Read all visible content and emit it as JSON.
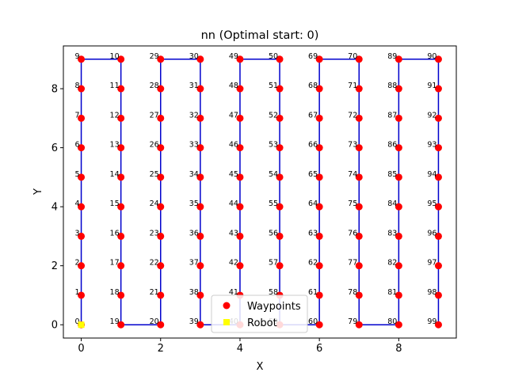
{
  "chart_data": {
    "type": "scatter",
    "title": "nn (Optimal start: 0)",
    "xlabel": "X",
    "ylabel": "Y",
    "xlim": [
      -0.45,
      9.45
    ],
    "ylim": [
      -0.45,
      9.45
    ],
    "xticks": [
      "0",
      "2",
      "4",
      "6",
      "8"
    ],
    "xtick_values": [
      0,
      2,
      4,
      6,
      8
    ],
    "yticks": [
      "0",
      "2",
      "4",
      "6",
      "8"
    ],
    "ytick_values": [
      0,
      2,
      4,
      6,
      8
    ],
    "grid": false,
    "legend": {
      "placement": "lower-center",
      "entries": [
        {
          "label": "Waypoints",
          "marker": "circle",
          "color": "#ff0000"
        },
        {
          "label": "Robot",
          "marker": "square",
          "color": "#ffff00"
        }
      ]
    },
    "waypoint_color": "#ff0000",
    "path_color": "#0000cc",
    "robot_color": "#ffff00",
    "robot_position": [
      0,
      0
    ],
    "waypoints": [
      {
        "id": "0",
        "x": 0,
        "y": 0
      },
      {
        "id": "1",
        "x": 0,
        "y": 1
      },
      {
        "id": "2",
        "x": 0,
        "y": 2
      },
      {
        "id": "3",
        "x": 0,
        "y": 3
      },
      {
        "id": "4",
        "x": 0,
        "y": 4
      },
      {
        "id": "5",
        "x": 0,
        "y": 5
      },
      {
        "id": "6",
        "x": 0,
        "y": 6
      },
      {
        "id": "7",
        "x": 0,
        "y": 7
      },
      {
        "id": "8",
        "x": 0,
        "y": 8
      },
      {
        "id": "9",
        "x": 0,
        "y": 9
      },
      {
        "id": "10",
        "x": 1,
        "y": 9
      },
      {
        "id": "11",
        "x": 1,
        "y": 8
      },
      {
        "id": "12",
        "x": 1,
        "y": 7
      },
      {
        "id": "13",
        "x": 1,
        "y": 6
      },
      {
        "id": "14",
        "x": 1,
        "y": 5
      },
      {
        "id": "15",
        "x": 1,
        "y": 4
      },
      {
        "id": "16",
        "x": 1,
        "y": 3
      },
      {
        "id": "17",
        "x": 1,
        "y": 2
      },
      {
        "id": "18",
        "x": 1,
        "y": 1
      },
      {
        "id": "19",
        "x": 1,
        "y": 0
      },
      {
        "id": "20",
        "x": 2,
        "y": 0
      },
      {
        "id": "21",
        "x": 2,
        "y": 1
      },
      {
        "id": "22",
        "x": 2,
        "y": 2
      },
      {
        "id": "23",
        "x": 2,
        "y": 3
      },
      {
        "id": "24",
        "x": 2,
        "y": 4
      },
      {
        "id": "25",
        "x": 2,
        "y": 5
      },
      {
        "id": "26",
        "x": 2,
        "y": 6
      },
      {
        "id": "27",
        "x": 2,
        "y": 7
      },
      {
        "id": "28",
        "x": 2,
        "y": 8
      },
      {
        "id": "29",
        "x": 2,
        "y": 9
      },
      {
        "id": "30",
        "x": 3,
        "y": 9
      },
      {
        "id": "31",
        "x": 3,
        "y": 8
      },
      {
        "id": "32",
        "x": 3,
        "y": 7
      },
      {
        "id": "33",
        "x": 3,
        "y": 6
      },
      {
        "id": "34",
        "x": 3,
        "y": 5
      },
      {
        "id": "35",
        "x": 3,
        "y": 4
      },
      {
        "id": "36",
        "x": 3,
        "y": 3
      },
      {
        "id": "37",
        "x": 3,
        "y": 2
      },
      {
        "id": "38",
        "x": 3,
        "y": 1
      },
      {
        "id": "39",
        "x": 3,
        "y": 0
      },
      {
        "id": "40",
        "x": 4,
        "y": 0
      },
      {
        "id": "41",
        "x": 4,
        "y": 1
      },
      {
        "id": "42",
        "x": 4,
        "y": 2
      },
      {
        "id": "43",
        "x": 4,
        "y": 3
      },
      {
        "id": "44",
        "x": 4,
        "y": 4
      },
      {
        "id": "45",
        "x": 4,
        "y": 5
      },
      {
        "id": "46",
        "x": 4,
        "y": 6
      },
      {
        "id": "47",
        "x": 4,
        "y": 7
      },
      {
        "id": "48",
        "x": 4,
        "y": 8
      },
      {
        "id": "49",
        "x": 4,
        "y": 9
      },
      {
        "id": "50",
        "x": 5,
        "y": 9
      },
      {
        "id": "51",
        "x": 5,
        "y": 8
      },
      {
        "id": "52",
        "x": 5,
        "y": 7
      },
      {
        "id": "53",
        "x": 5,
        "y": 6
      },
      {
        "id": "54",
        "x": 5,
        "y": 5
      },
      {
        "id": "55",
        "x": 5,
        "y": 4
      },
      {
        "id": "56",
        "x": 5,
        "y": 3
      },
      {
        "id": "57",
        "x": 5,
        "y": 2
      },
      {
        "id": "58",
        "x": 5,
        "y": 1
      },
      {
        "id": "59",
        "x": 5,
        "y": 0
      },
      {
        "id": "60",
        "x": 6,
        "y": 0
      },
      {
        "id": "61",
        "x": 6,
        "y": 1
      },
      {
        "id": "62",
        "x": 6,
        "y": 2
      },
      {
        "id": "63",
        "x": 6,
        "y": 3
      },
      {
        "id": "64",
        "x": 6,
        "y": 4
      },
      {
        "id": "65",
        "x": 6,
        "y": 5
      },
      {
        "id": "66",
        "x": 6,
        "y": 6
      },
      {
        "id": "67",
        "x": 6,
        "y": 7
      },
      {
        "id": "68",
        "x": 6,
        "y": 8
      },
      {
        "id": "69",
        "x": 6,
        "y": 9
      },
      {
        "id": "70",
        "x": 7,
        "y": 9
      },
      {
        "id": "71",
        "x": 7,
        "y": 8
      },
      {
        "id": "72",
        "x": 7,
        "y": 7
      },
      {
        "id": "73",
        "x": 7,
        "y": 6
      },
      {
        "id": "74",
        "x": 7,
        "y": 5
      },
      {
        "id": "75",
        "x": 7,
        "y": 4
      },
      {
        "id": "76",
        "x": 7,
        "y": 3
      },
      {
        "id": "77",
        "x": 7,
        "y": 2
      },
      {
        "id": "78",
        "x": 7,
        "y": 1
      },
      {
        "id": "79",
        "x": 7,
        "y": 0
      },
      {
        "id": "80",
        "x": 8,
        "y": 0
      },
      {
        "id": "81",
        "x": 8,
        "y": 1
      },
      {
        "id": "82",
        "x": 8,
        "y": 2
      },
      {
        "id": "83",
        "x": 8,
        "y": 3
      },
      {
        "id": "84",
        "x": 8,
        "y": 4
      },
      {
        "id": "85",
        "x": 8,
        "y": 5
      },
      {
        "id": "86",
        "x": 8,
        "y": 6
      },
      {
        "id": "87",
        "x": 8,
        "y": 7
      },
      {
        "id": "88",
        "x": 8,
        "y": 8
      },
      {
        "id": "89",
        "x": 8,
        "y": 9
      },
      {
        "id": "90",
        "x": 9,
        "y": 9
      },
      {
        "id": "91",
        "x": 9,
        "y": 8
      },
      {
        "id": "92",
        "x": 9,
        "y": 7
      },
      {
        "id": "93",
        "x": 9,
        "y": 6
      },
      {
        "id": "94",
        "x": 9,
        "y": 5
      },
      {
        "id": "95",
        "x": 9,
        "y": 4
      },
      {
        "id": "96",
        "x": 9,
        "y": 3
      },
      {
        "id": "97",
        "x": 9,
        "y": 2
      },
      {
        "id": "98",
        "x": 9,
        "y": 1
      },
      {
        "id": "99",
        "x": 9,
        "y": 0
      }
    ]
  }
}
